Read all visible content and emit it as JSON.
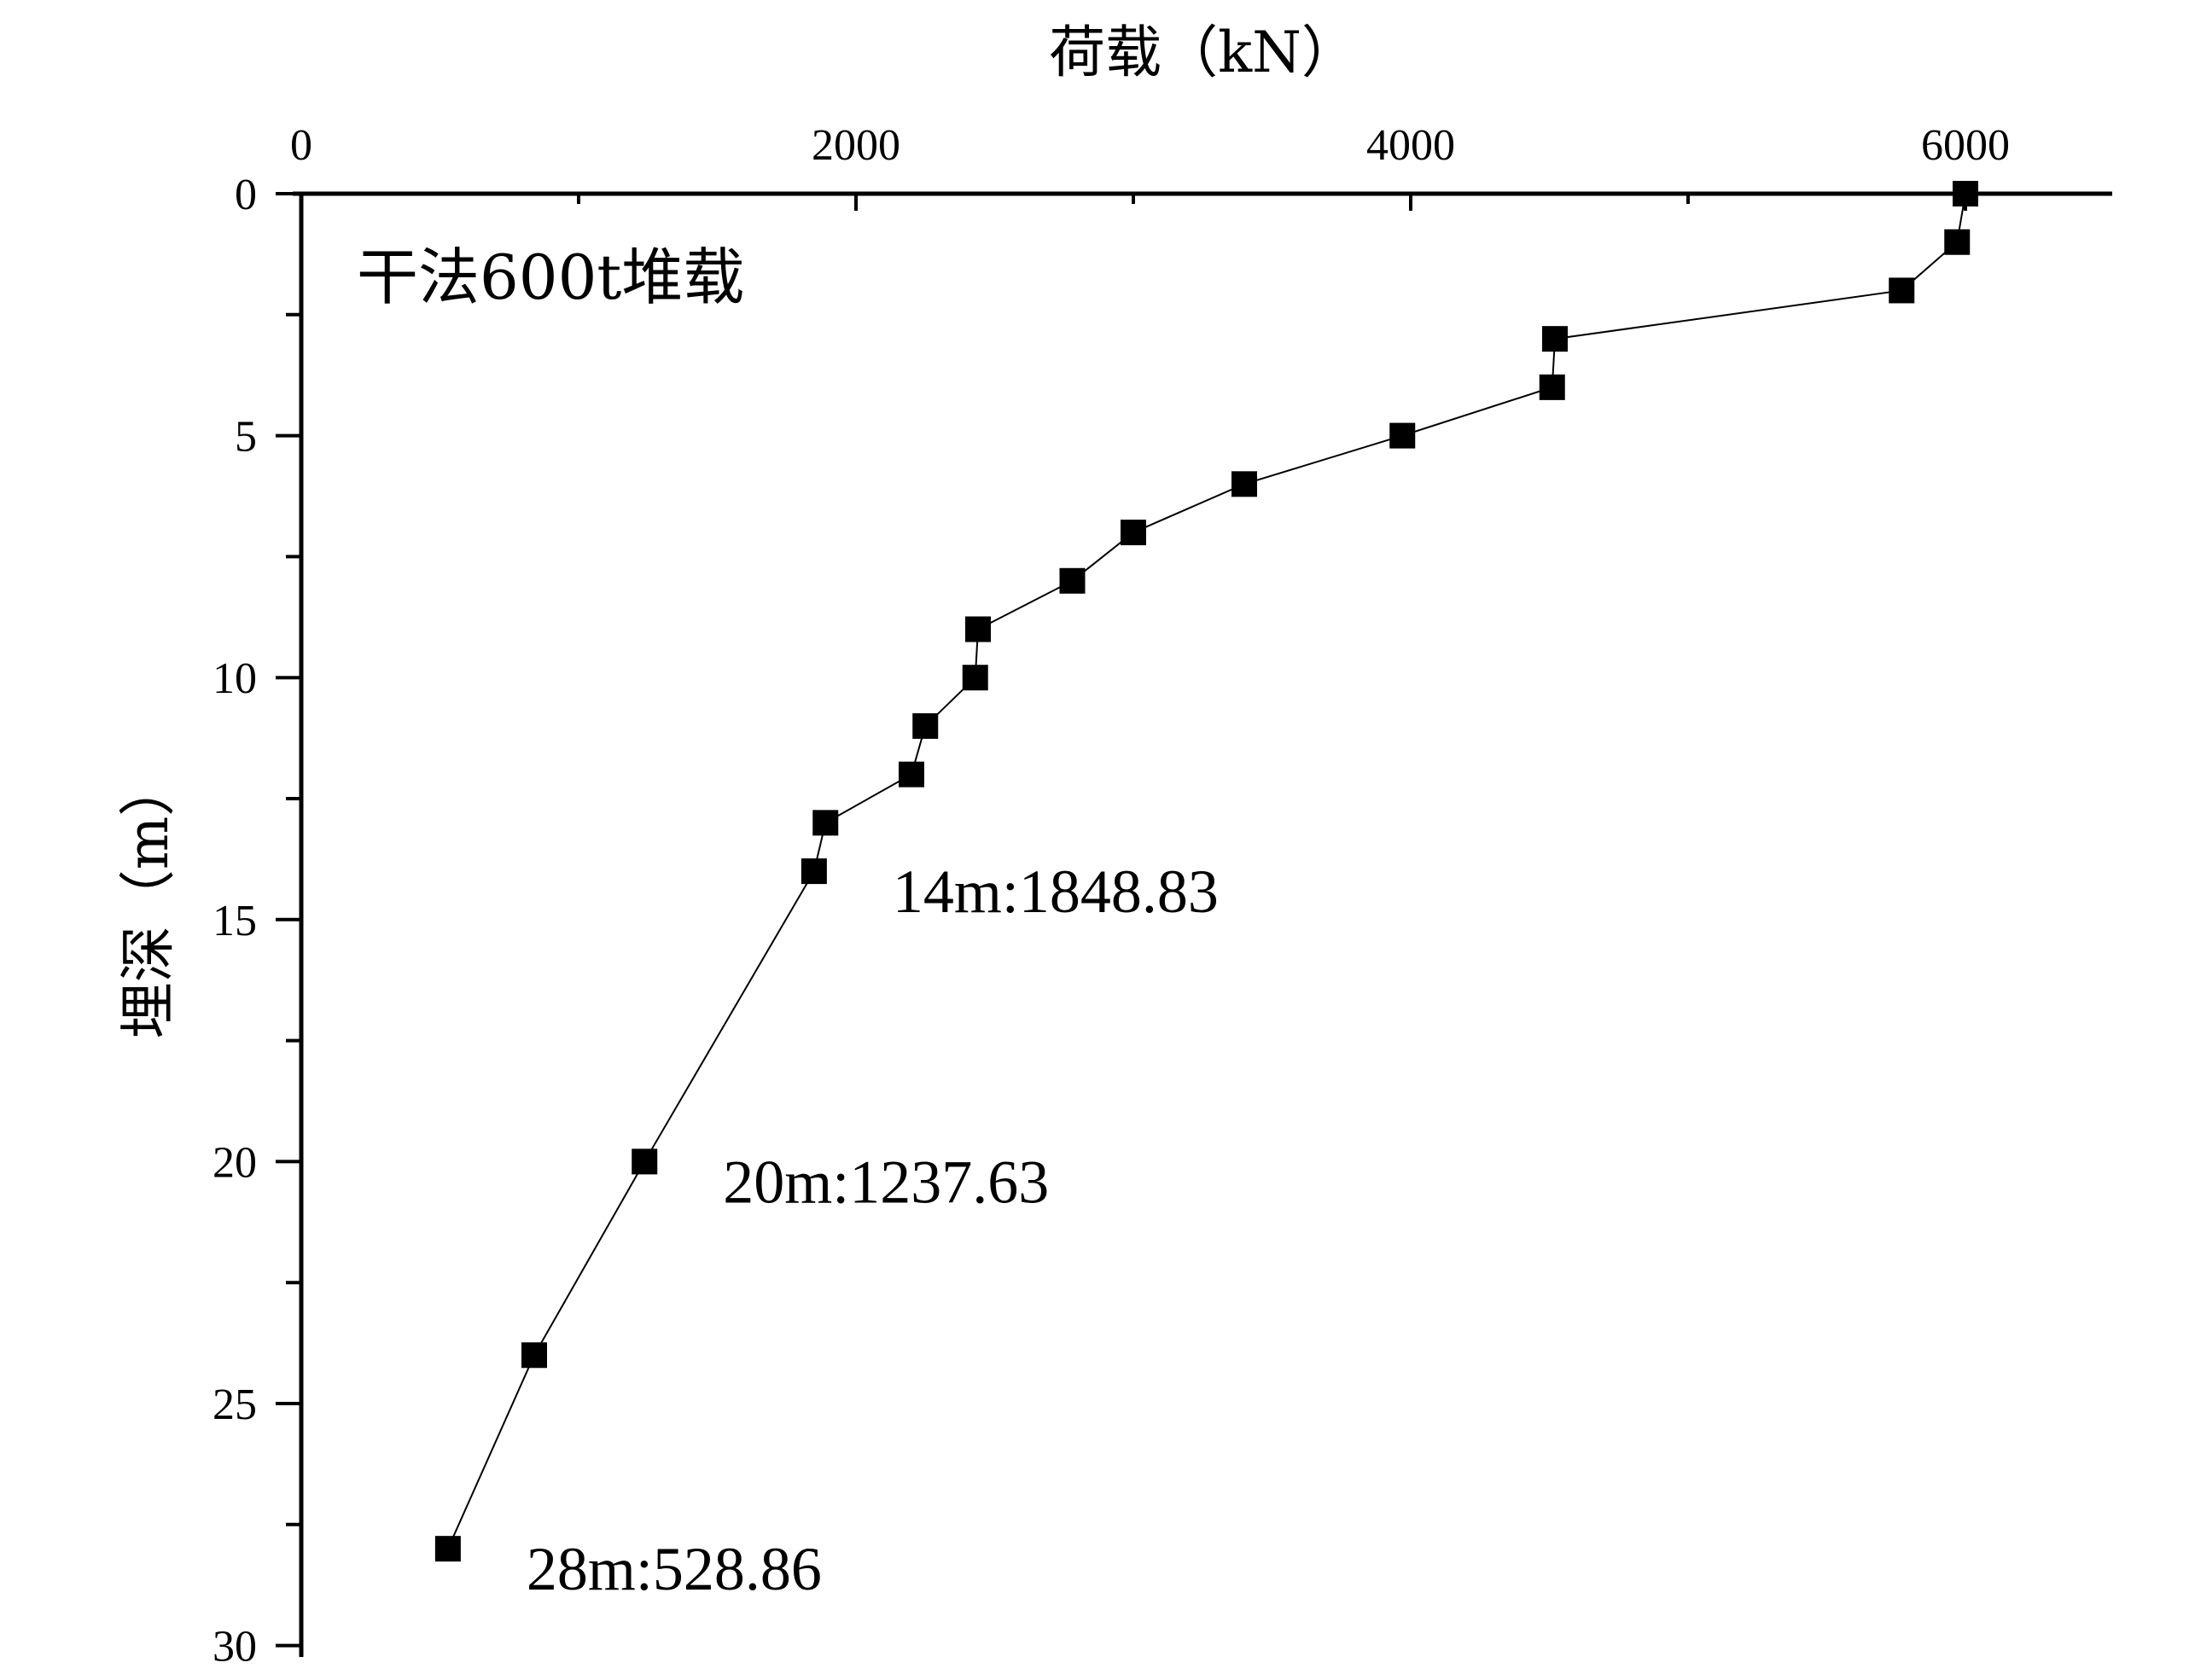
{
  "chart_data": {
    "type": "line",
    "title": "干法600t堆载",
    "xlabel": "荷载（kN）",
    "ylabel": "埋深（m）",
    "xlim": [
      0,
      6500
    ],
    "ylim": [
      0,
      30
    ],
    "x_axis_position": "top",
    "y_inverted": true,
    "grid": false,
    "x_ticks": [
      0,
      2000,
      4000,
      6000
    ],
    "x_tick_labels": [
      "0",
      "2000",
      "4000",
      "6000"
    ],
    "y_ticks": [
      0,
      5,
      10,
      15,
      20,
      25,
      30
    ],
    "y_tick_labels": [
      "0",
      "5",
      "10",
      "15",
      "20",
      "25",
      "30"
    ],
    "series": [
      {
        "marker": "square",
        "color": "#000000",
        "points": [
          {
            "x": 6000,
            "y": 0
          },
          {
            "x": 5970,
            "y": 1
          },
          {
            "x": 5770,
            "y": 2
          },
          {
            "x": 4520,
            "y": 3
          },
          {
            "x": 4510,
            "y": 4
          },
          {
            "x": 3970,
            "y": 5
          },
          {
            "x": 3400,
            "y": 6
          },
          {
            "x": 3000,
            "y": 7
          },
          {
            "x": 2780,
            "y": 8
          },
          {
            "x": 2440,
            "y": 9
          },
          {
            "x": 2430,
            "y": 10
          },
          {
            "x": 2250,
            "y": 11
          },
          {
            "x": 2200,
            "y": 12
          },
          {
            "x": 1890,
            "y": 13
          },
          {
            "x": 1848.83,
            "y": 14
          },
          {
            "x": 1237.63,
            "y": 20
          },
          {
            "x": 840,
            "y": 24
          },
          {
            "x": 528.86,
            "y": 28
          }
        ]
      }
    ],
    "annotations": [
      {
        "text": "14m:1848.83",
        "x": 1848.83,
        "y": 14
      },
      {
        "text": "20m:1237.63",
        "x": 1237.63,
        "y": 20
      },
      {
        "text": "28m:528.86",
        "x": 528.86,
        "y": 28
      }
    ]
  }
}
